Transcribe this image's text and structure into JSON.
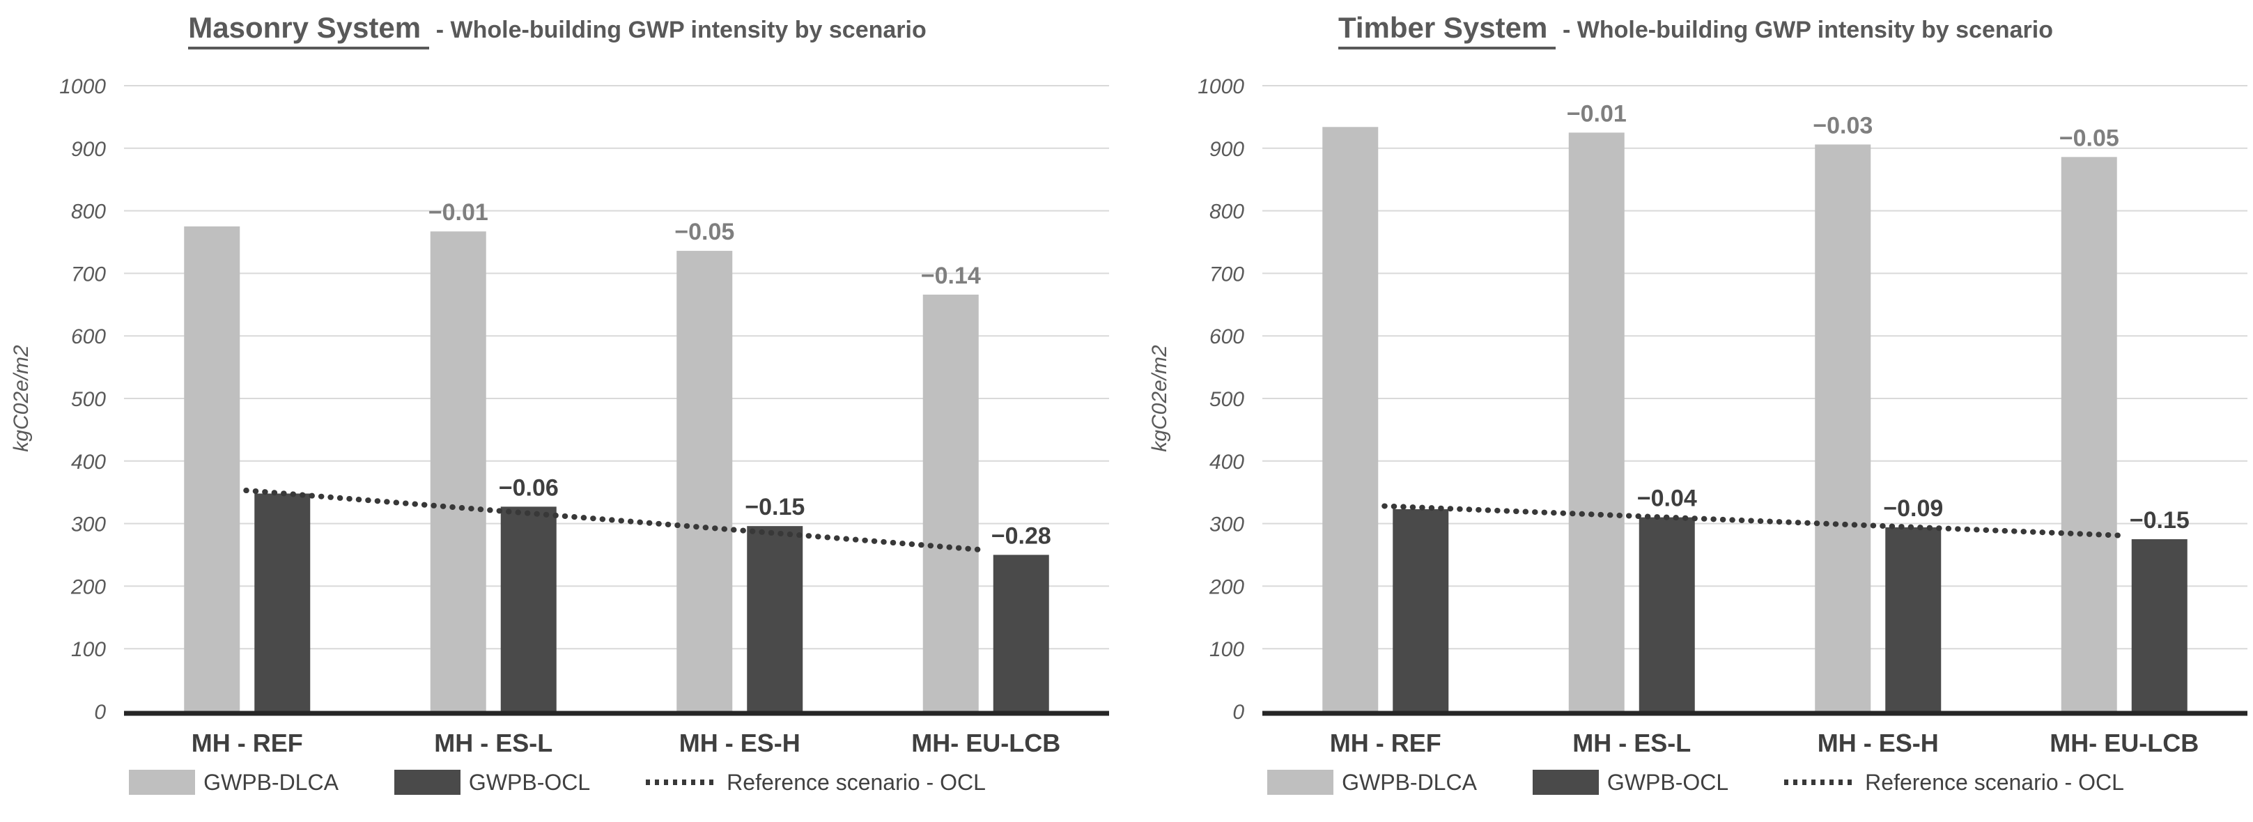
{
  "page": {
    "background": "#ffffff"
  },
  "style": {
    "grid_color": "#d9d9d9",
    "axis_color": "#262626",
    "tick_color": "#595959",
    "title_color": "#595959",
    "xlabel_color": "#3f3f3f",
    "legend_text_color": "#404040"
  },
  "chart_data": [
    {
      "type": "bar",
      "title": "Masonry System - Whole-building GWP intensity by scenario",
      "title_main": "Masonry System ",
      "title_sub": "- Whole-building GWP intensity by scenario",
      "ylabel": "kgC02e/m2",
      "xlabel": "",
      "ylim": [
        0,
        1000
      ],
      "ytick_step": 100,
      "grid": true,
      "legend_position": "bottom",
      "categories": [
        "MH - REF",
        "MH - ES-L",
        "MH - ES-H",
        "MH- EU-LCB"
      ],
      "series": [
        {
          "name": "GWPB-DLCA",
          "color": "#bfbfbf",
          "label_color": "#7f7f7f",
          "values": [
            775,
            767,
            736,
            666
          ],
          "labels": [
            "",
            "−0.01",
            "−0.05",
            "−0.14"
          ]
        },
        {
          "name": "GWPB-OCL",
          "color": "#4a4a4a",
          "label_color": "#3f3f3f",
          "values": [
            348,
            327,
            296,
            250
          ],
          "labels": [
            "",
            "−0.06",
            "−0.15",
            "−0.28"
          ]
        }
      ],
      "reference_line": {
        "name": "Reference scenario - OCL",
        "color": "#383838",
        "start_value": 353,
        "end_value": 258
      }
    },
    {
      "type": "bar",
      "title": "Timber System - Whole-building GWP intensity by scenario",
      "title_main": "Timber System ",
      "title_sub": "- Whole-building GWP intensity by scenario",
      "ylabel": "kgC02e/m2",
      "xlabel": "",
      "ylim": [
        0,
        1000
      ],
      "ytick_step": 100,
      "grid": true,
      "legend_position": "bottom",
      "categories": [
        "MH - REF",
        "MH - ES-L",
        "MH - ES-H",
        "MH- EU-LCB"
      ],
      "series": [
        {
          "name": "GWPB-DLCA",
          "color": "#bfbfbf",
          "label_color": "#7f7f7f",
          "values": [
            934,
            925,
            906,
            886
          ],
          "labels": [
            "",
            "−0.01",
            "−0.03",
            "−0.05"
          ]
        },
        {
          "name": "GWPB-OCL",
          "color": "#4a4a4a",
          "label_color": "#3f3f3f",
          "values": [
            323,
            310,
            294,
            275
          ],
          "labels": [
            "",
            "−0.04",
            "−0.09",
            "−0.15"
          ]
        }
      ],
      "reference_line": {
        "name": "Reference scenario - OCL",
        "color": "#383838",
        "start_value": 328,
        "end_value": 281
      }
    }
  ]
}
